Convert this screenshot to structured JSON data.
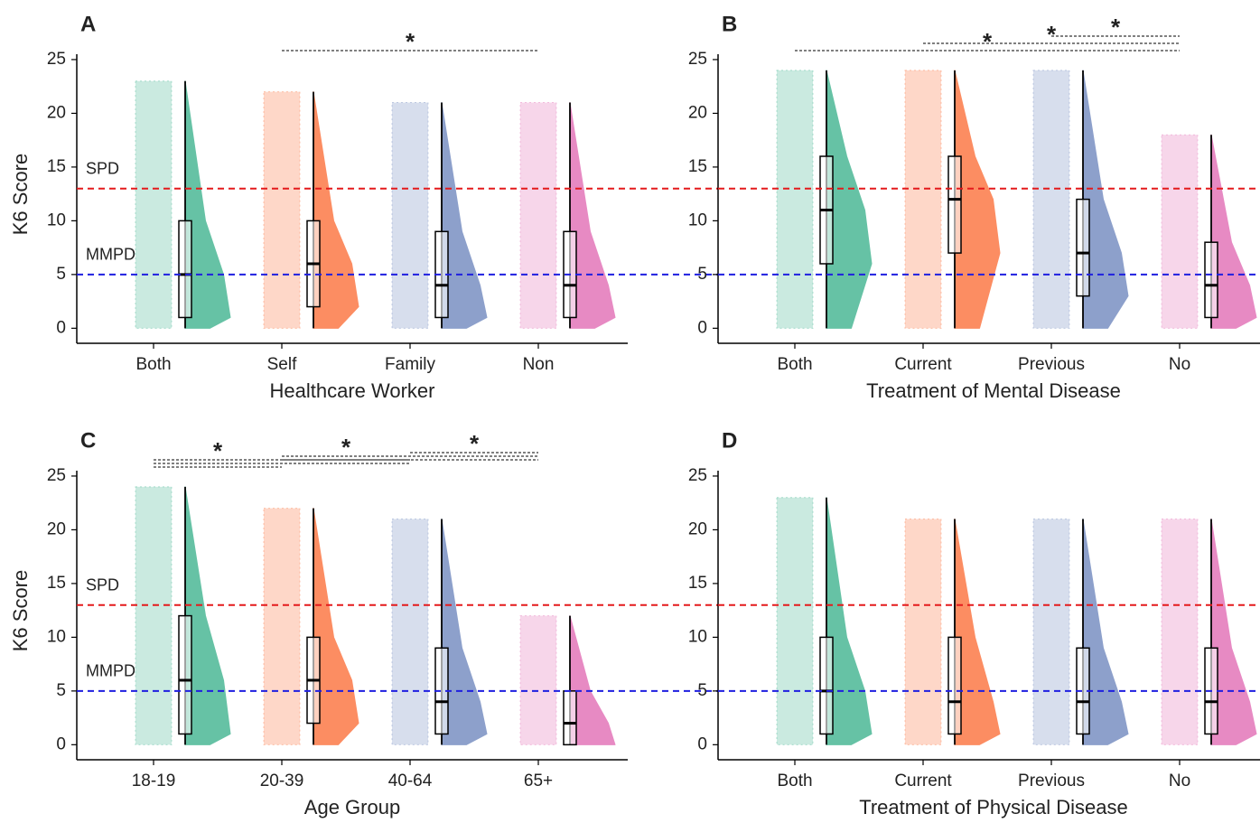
{
  "chart_data": [
    {
      "panel": "A",
      "type": "raincloud",
      "xlabel": "Healthcare Worker",
      "ylabel": "K6 Score",
      "categories": [
        "Both",
        "Self",
        "Family",
        "Non"
      ],
      "colors": [
        "#66c2a5",
        "#fc8d62",
        "#8da0cb",
        "#e78ac3"
      ],
      "boxes": [
        {
          "min": 0,
          "q1": 1,
          "median": 5,
          "q3": 10,
          "max": 23
        },
        {
          "min": 0,
          "q1": 2,
          "median": 6,
          "q3": 10,
          "max": 22
        },
        {
          "min": 0,
          "q1": 1,
          "median": 4,
          "q3": 9,
          "max": 21
        },
        {
          "min": 0,
          "q1": 1,
          "median": 4,
          "q3": 9,
          "max": 21
        }
      ],
      "ylim": [
        -1.4,
        25.5
      ],
      "yticks": [
        0,
        5,
        10,
        15,
        20,
        25
      ],
      "reference_lines": [
        {
          "label": "SPD",
          "value": 13,
          "color": "#e41a1c"
        },
        {
          "label": "MMPD",
          "value": 5,
          "color": "#1f1fe0"
        }
      ],
      "significance": [
        {
          "label": "*",
          "pairs": [
            [
              "Self",
              "Non"
            ]
          ]
        }
      ]
    },
    {
      "panel": "B",
      "type": "raincloud",
      "xlabel": "Treatment of Mental Disease",
      "categories": [
        "Both",
        "Current",
        "Previous",
        "No"
      ],
      "colors": [
        "#66c2a5",
        "#fc8d62",
        "#8da0cb",
        "#e78ac3"
      ],
      "boxes": [
        {
          "min": 0,
          "q1": 6,
          "median": 11,
          "q3": 16,
          "max": 24
        },
        {
          "min": 0,
          "q1": 7,
          "median": 12,
          "q3": 16,
          "max": 24
        },
        {
          "min": 0,
          "q1": 3,
          "median": 7,
          "q3": 12,
          "max": 24
        },
        {
          "min": 0,
          "q1": 1,
          "median": 4,
          "q3": 8,
          "max": 18
        }
      ],
      "ylim": [
        -1.4,
        25.5
      ],
      "yticks": [
        0,
        5,
        10,
        15,
        20,
        25
      ],
      "reference_lines": [
        {
          "value": 13,
          "color": "#e41a1c"
        },
        {
          "value": 5,
          "color": "#1f1fe0"
        }
      ],
      "significance": [
        {
          "label": "*",
          "pairs": [
            [
              "Both",
              "No"
            ]
          ]
        },
        {
          "label": "*",
          "pairs": [
            [
              "Current",
              "No"
            ]
          ]
        },
        {
          "label": "*",
          "pairs": [
            [
              "Previous",
              "No"
            ]
          ]
        }
      ]
    },
    {
      "panel": "C",
      "type": "raincloud",
      "xlabel": "Age Group",
      "ylabel": "K6 Score",
      "categories": [
        "18-19",
        "20-39",
        "40-64",
        "65+"
      ],
      "colors": [
        "#66c2a5",
        "#fc8d62",
        "#8da0cb",
        "#e78ac3"
      ],
      "boxes": [
        {
          "min": 0,
          "q1": 1,
          "median": 6,
          "q3": 12,
          "max": 24
        },
        {
          "min": 0,
          "q1": 2,
          "median": 6,
          "q3": 10,
          "max": 22
        },
        {
          "min": 0,
          "q1": 1,
          "median": 4,
          "q3": 9,
          "max": 21
        },
        {
          "min": 0,
          "q1": 0,
          "median": 2,
          "q3": 5,
          "max": 12
        }
      ],
      "ylim": [
        -1.4,
        25.5
      ],
      "yticks": [
        0,
        5,
        10,
        15,
        20,
        25
      ],
      "reference_lines": [
        {
          "label": "SPD",
          "value": 13,
          "color": "#e41a1c"
        },
        {
          "label": "MMPD",
          "value": 5,
          "color": "#1f1fe0"
        }
      ],
      "significance": [
        {
          "label": "*",
          "pairs": [
            [
              "18-19",
              "20-39"
            ],
            [
              "18-19",
              "40-64"
            ],
            [
              "18-19",
              "65+"
            ]
          ]
        },
        {
          "label": "*",
          "pairs": [
            [
              "20-39",
              "40-64"
            ],
            [
              "20-39",
              "65+"
            ]
          ]
        },
        {
          "label": "*",
          "pairs": [
            [
              "40-64",
              "65+"
            ]
          ]
        }
      ]
    },
    {
      "panel": "D",
      "type": "raincloud",
      "xlabel": "Treatment of Physical Disease",
      "categories": [
        "Both",
        "Current",
        "Previous",
        "No"
      ],
      "colors": [
        "#66c2a5",
        "#fc8d62",
        "#8da0cb",
        "#e78ac3"
      ],
      "boxes": [
        {
          "min": 0,
          "q1": 1,
          "median": 5,
          "q3": 10,
          "max": 23
        },
        {
          "min": 0,
          "q1": 1,
          "median": 4,
          "q3": 10,
          "max": 21
        },
        {
          "min": 0,
          "q1": 1,
          "median": 4,
          "q3": 9,
          "max": 21
        },
        {
          "min": 0,
          "q1": 1,
          "median": 4,
          "q3": 9,
          "max": 21
        }
      ],
      "ylim": [
        -1.4,
        25.5
      ],
      "yticks": [
        0,
        5,
        10,
        15,
        20,
        25
      ],
      "reference_lines": [
        {
          "value": 13,
          "color": "#e41a1c"
        },
        {
          "value": 5,
          "color": "#1f1fe0"
        }
      ],
      "significance": []
    }
  ]
}
